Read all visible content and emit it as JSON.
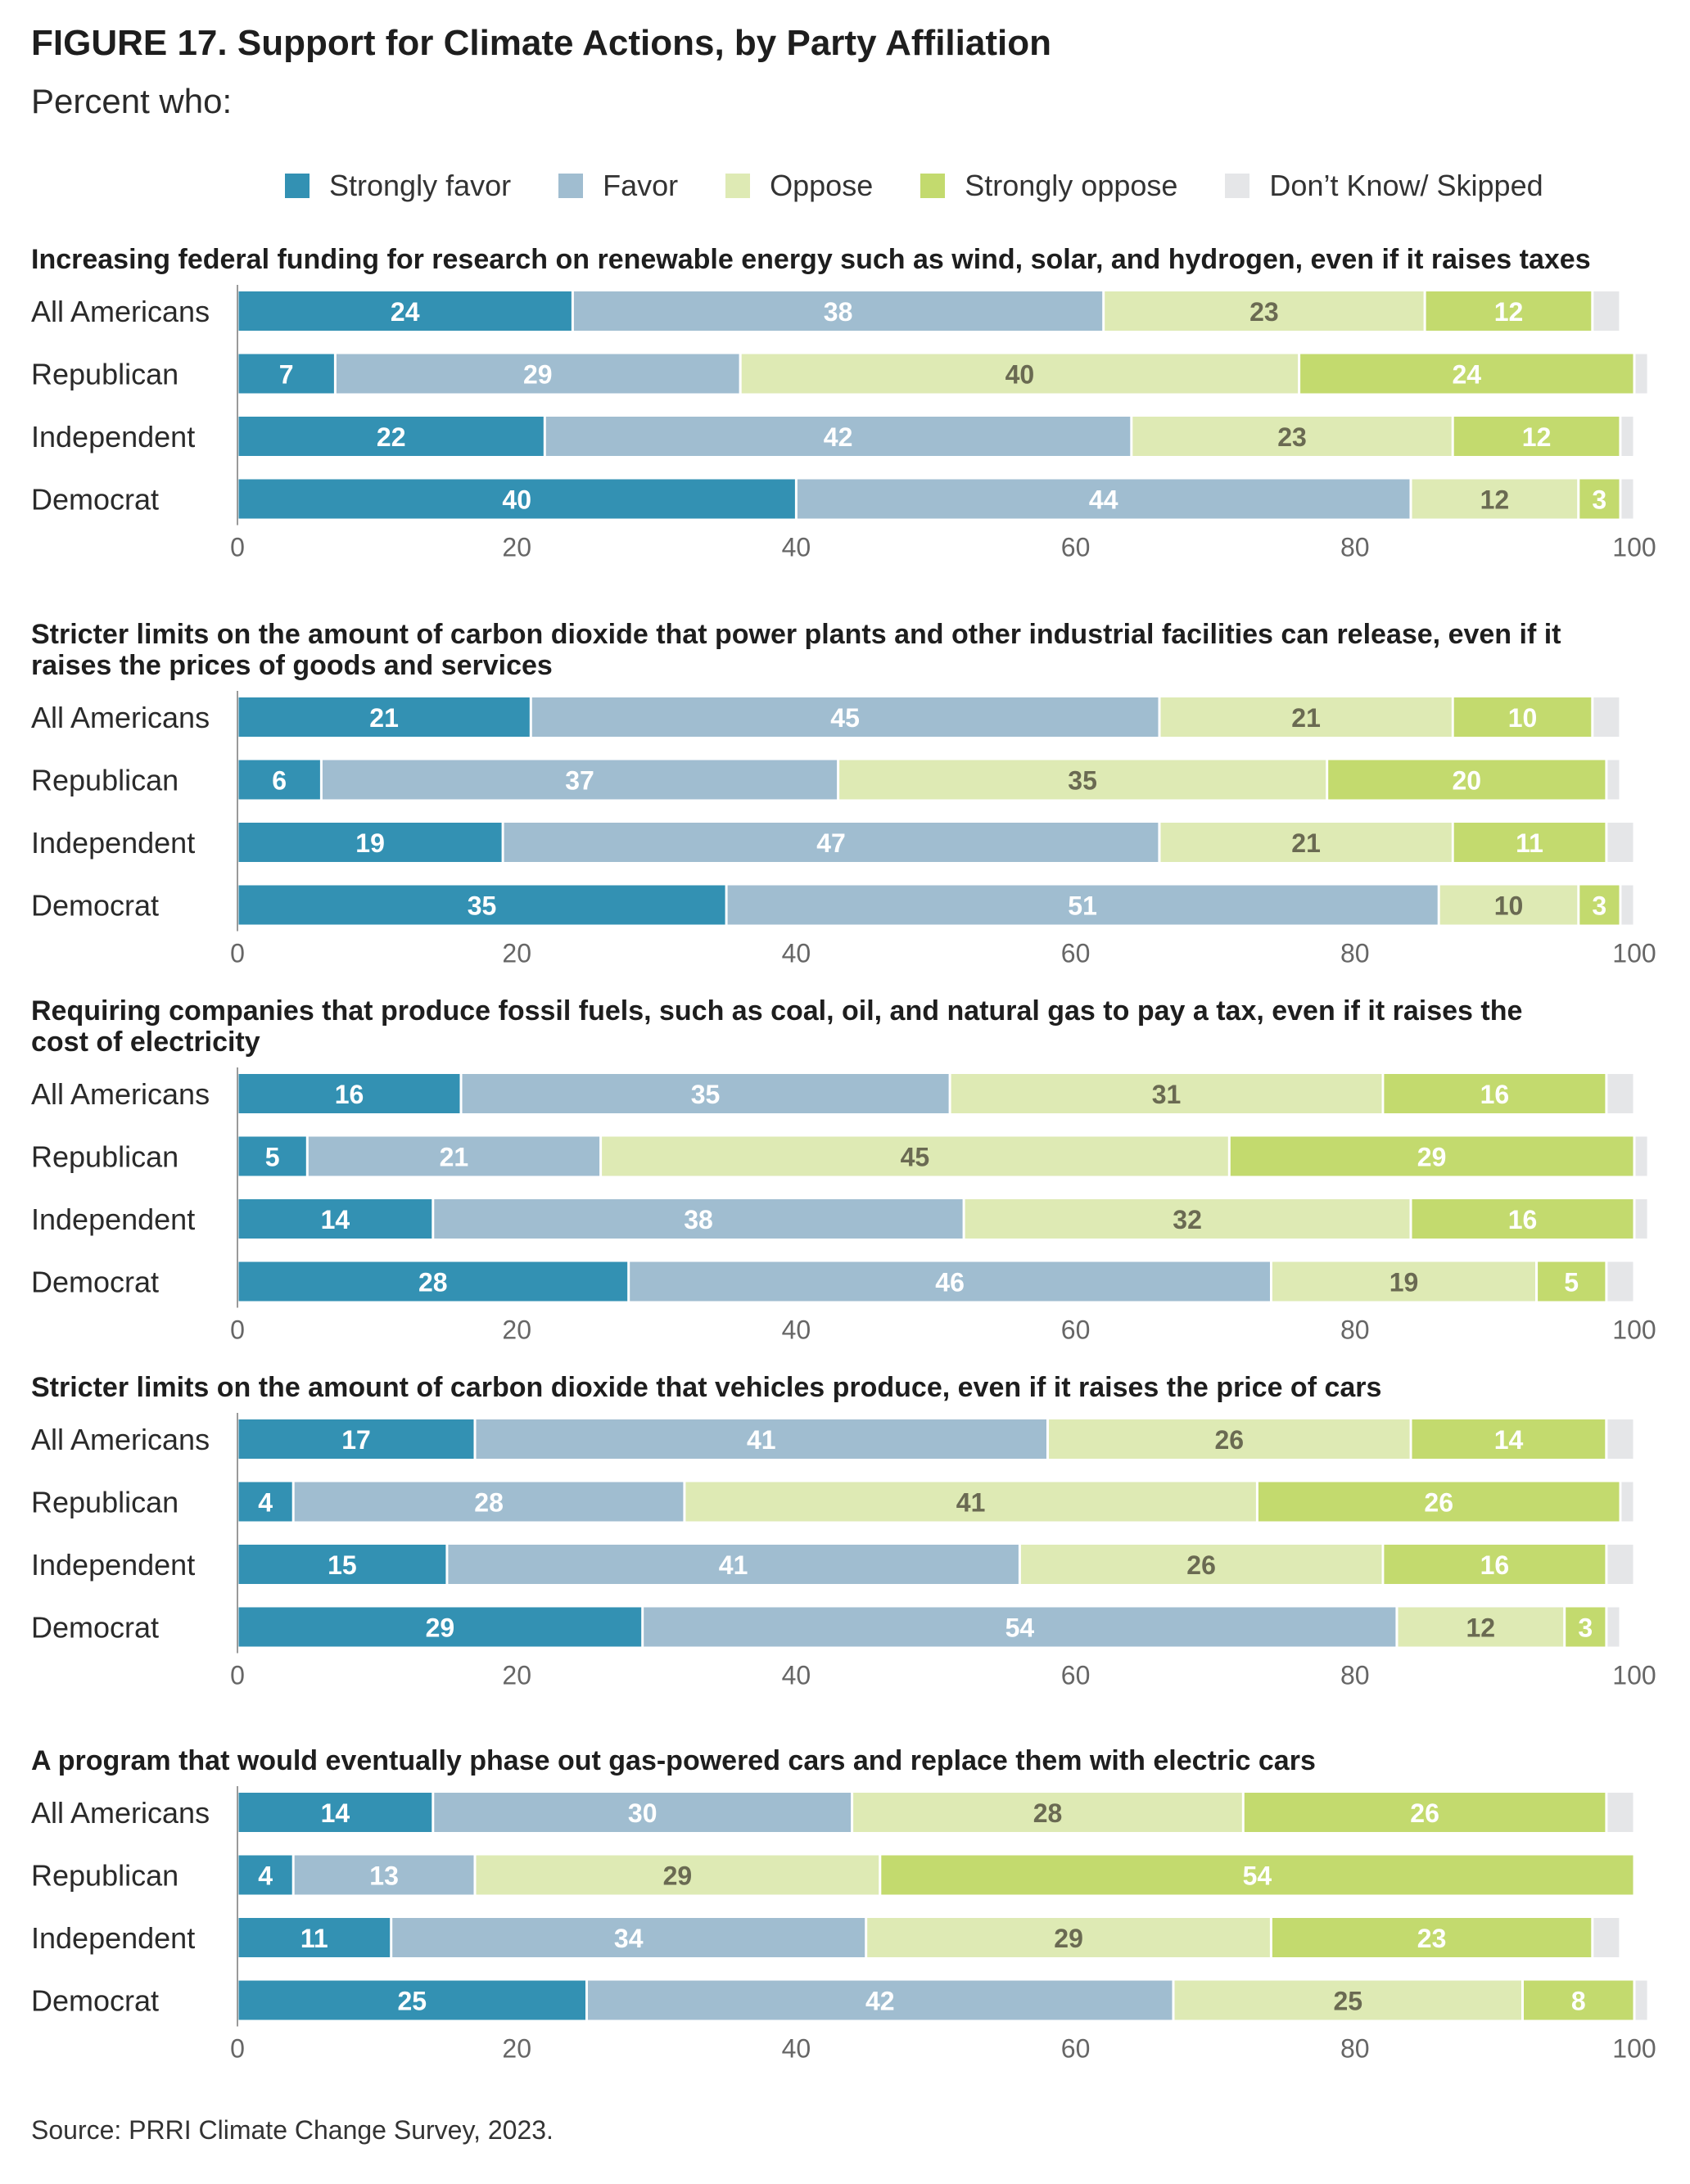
{
  "title": "FIGURE 17.  Support for Climate Actions, by Party Affiliation",
  "subtitle": "Percent who:",
  "source": "Source: PRRI Climate Change Survey, 2023.",
  "colors": {
    "strongly_favor": "#3391b3",
    "favor": "#a0bdd0",
    "oppose": "#deeab4",
    "strongly_oppose": "#c3da6e",
    "dont_know": "#e5e6e8"
  },
  "legend": [
    {
      "label": "Strongly favor",
      "color": "#3391b3"
    },
    {
      "label": "Favor",
      "color": "#a0bdd0"
    },
    {
      "label": "Oppose",
      "color": "#deeab4"
    },
    {
      "label": "Strongly oppose",
      "color": "#c3da6e"
    },
    {
      "label": "Don’t Know/ Skipped",
      "color": "#e5e6e8"
    }
  ],
  "chart_data": {
    "type": "bar",
    "orientation": "horizontal",
    "stacked": true,
    "xlim": [
      0,
      100
    ],
    "xticks": [
      0,
      20,
      40,
      60,
      80,
      100
    ],
    "grid": false,
    "legend_position": "top",
    "series_names": [
      "Strongly favor",
      "Favor",
      "Oppose",
      "Strongly oppose",
      "Don’t Know/ Skipped"
    ],
    "panels": [
      {
        "question_lines": [
          "Increasing federal funding for research on renewable energy such as wind, solar, and hydrogen, even if it raises taxes"
        ],
        "rows": [
          {
            "category": "All Americans",
            "values": [
              24,
              38,
              23,
              12,
              2
            ]
          },
          {
            "category": "Republican",
            "values": [
              7,
              29,
              40,
              24,
              1
            ]
          },
          {
            "category": "Independent",
            "values": [
              22,
              42,
              23,
              12,
              1
            ]
          },
          {
            "category": "Democrat",
            "values": [
              40,
              44,
              12,
              3,
              1
            ]
          }
        ]
      },
      {
        "question_lines": [
          "Stricter limits on the amount of carbon dioxide that power plants and other industrial facilities can release, even if it",
          "raises the prices of goods and services"
        ],
        "rows": [
          {
            "category": "All Americans",
            "values": [
              21,
              45,
              21,
              10,
              2
            ]
          },
          {
            "category": "Republican",
            "values": [
              6,
              37,
              35,
              20,
              1
            ]
          },
          {
            "category": "Independent",
            "values": [
              19,
              47,
              21,
              11,
              2
            ]
          },
          {
            "category": "Democrat",
            "values": [
              35,
              51,
              10,
              3,
              1
            ]
          }
        ]
      },
      {
        "question_lines": [
          "Requiring companies that produce fossil fuels, such as coal, oil, and natural gas to pay a tax, even if it raises the",
          "cost of electricity"
        ],
        "rows": [
          {
            "category": "All Americans",
            "values": [
              16,
              35,
              31,
              16,
              2
            ]
          },
          {
            "category": "Republican",
            "values": [
              5,
              21,
              45,
              29,
              1
            ]
          },
          {
            "category": "Independent",
            "values": [
              14,
              38,
              32,
              16,
              1
            ]
          },
          {
            "category": "Democrat",
            "values": [
              28,
              46,
              19,
              5,
              2
            ]
          }
        ]
      },
      {
        "question_lines": [
          "Stricter limits on the amount of carbon dioxide that vehicles produce, even if it raises the price of cars"
        ],
        "rows": [
          {
            "category": "All Americans",
            "values": [
              17,
              41,
              26,
              14,
              2
            ]
          },
          {
            "category": "Republican",
            "values": [
              4,
              28,
              41,
              26,
              1
            ]
          },
          {
            "category": "Independent",
            "values": [
              15,
              41,
              26,
              16,
              2
            ]
          },
          {
            "category": "Democrat",
            "values": [
              29,
              54,
              12,
              3,
              1
            ]
          }
        ]
      },
      {
        "question_lines": [
          "A program that would eventually phase out gas-powered cars and replace them with electric cars"
        ],
        "rows": [
          {
            "category": "All Americans",
            "values": [
              14,
              30,
              28,
              26,
              2
            ]
          },
          {
            "category": "Republican",
            "values": [
              4,
              13,
              29,
              54,
              0
            ]
          },
          {
            "category": "Independent",
            "values": [
              11,
              34,
              29,
              23,
              2
            ]
          },
          {
            "category": "Democrat",
            "values": [
              25,
              42,
              25,
              8,
              1
            ]
          }
        ]
      }
    ]
  }
}
